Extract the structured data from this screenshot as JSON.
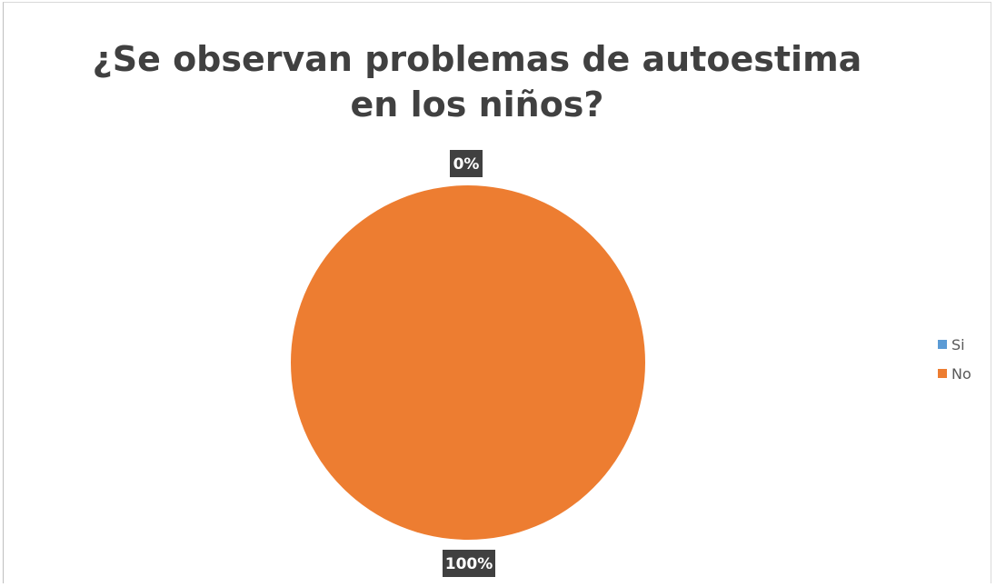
{
  "chart_data": {
    "type": "pie",
    "title": "¿Se observan problemas de autoestima en los niños?",
    "categories": [
      "Si",
      "No"
    ],
    "values": [
      0,
      1
    ],
    "data_labels": [
      "0%",
      "100%"
    ],
    "colors": [
      "#5b9bd5",
      "#ed7d31"
    ],
    "legend_position": "right"
  }
}
